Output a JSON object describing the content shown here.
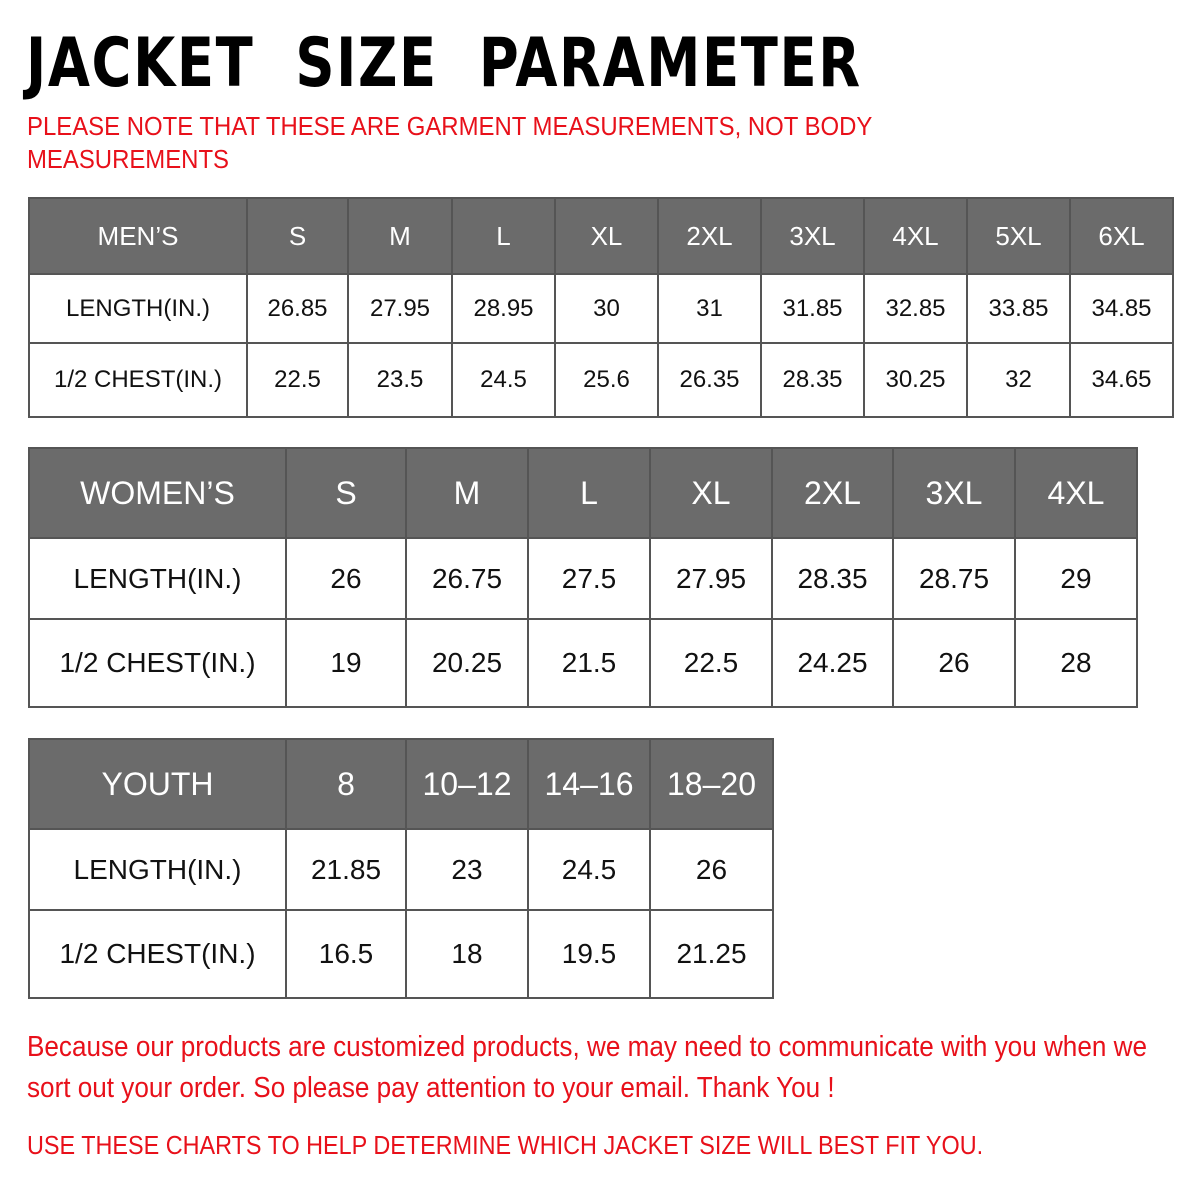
{
  "title": "JACKET  SIZE  PARAMETER",
  "note": "PLEASE NOTE THAT THESE ARE GARMENT MEASUREMENTS, NOT BODY MEASUREMENTS",
  "colors": {
    "header_bg": "#6b6b6b",
    "note_red": "#e8101a"
  },
  "tables": [
    {
      "id": "men",
      "header": [
        "MEN’S",
        "S",
        "M",
        "L",
        "XL",
        "2XL",
        "3XL",
        "4XL",
        "5XL",
        "6XL"
      ],
      "rows": [
        [
          "LENGTH(IN.)",
          "26.85",
          "27.95",
          "28.95",
          "30",
          "31",
          "31.85",
          "32.85",
          "33.85",
          "34.85"
        ],
        [
          "1/2 CHEST(IN.)",
          "22.5",
          "23.5",
          "24.5",
          "25.6",
          "26.35",
          "28.35",
          "30.25",
          "32",
          "34.65"
        ]
      ]
    },
    {
      "id": "women",
      "header": [
        "WOMEN’S",
        "S",
        "M",
        "L",
        "XL",
        "2XL",
        "3XL",
        "4XL"
      ],
      "rows": [
        [
          "LENGTH(IN.)",
          "26",
          "26.75",
          "27.5",
          "27.95",
          "28.35",
          "28.75",
          "29"
        ],
        [
          "1/2 CHEST(IN.)",
          "19",
          "20.25",
          "21.5",
          "22.5",
          "24.25",
          "26",
          "28"
        ]
      ]
    },
    {
      "id": "youth",
      "header": [
        "YOUTH",
        "8",
        "10–12",
        "14–16",
        "18–20"
      ],
      "rows": [
        [
          "LENGTH(IN.)",
          "21.85",
          "23",
          "24.5",
          "26"
        ],
        [
          "1/2 CHEST(IN.)",
          "16.5",
          "18",
          "19.5",
          "21.25"
        ]
      ]
    }
  ],
  "footer": {
    "message": "Because our products are customized products, we may need to communicate with you when we sort out your order. So please pay attention to your email. Thank You !",
    "instruction": "USE THESE CHARTS TO HELP DETERMINE WHICH JACKET SIZE WILL BEST FIT YOU."
  }
}
